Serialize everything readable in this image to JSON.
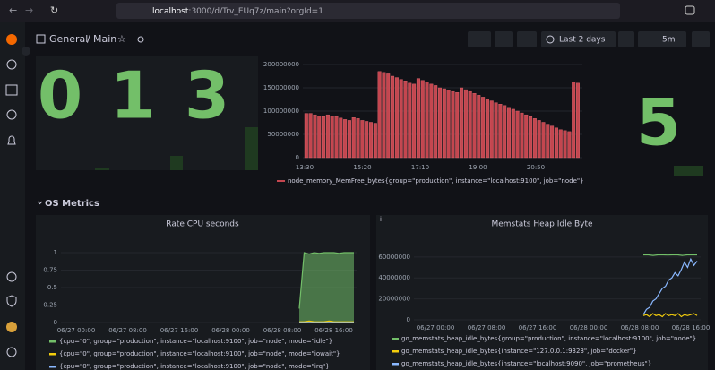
{
  "browser": {
    "url_host": "localhost",
    "url_rest": ":3000/d/Trv_EUq7z/main?orgId=1"
  },
  "header": {
    "folder": "General",
    "separator": "/",
    "title": "Main",
    "time_range": "Last 2 days",
    "refresh": "5m"
  },
  "stats": [
    0,
    1,
    3,
    5
  ],
  "memfree": {
    "ylim": [
      0,
      200000000
    ],
    "yticks": [
      0,
      50000000,
      100000000,
      150000000,
      200000000
    ],
    "xticks": [
      "13:30",
      "15:20",
      "17:10",
      "19:00",
      "20:50"
    ],
    "color": "#c4464f",
    "legend": "node_memory_MemFree_bytes{group=\"production\", instance=\"localhost:9100\", job=\"node\"}",
    "values": [
      95000000,
      95000000,
      92000000,
      90000000,
      88000000,
      92000000,
      90000000,
      88000000,
      85000000,
      82000000,
      80000000,
      86000000,
      84000000,
      80000000,
      78000000,
      76000000,
      74000000,
      185000000,
      183000000,
      180000000,
      175000000,
      172000000,
      168000000,
      165000000,
      160000000,
      158000000,
      170000000,
      166000000,
      162000000,
      158000000,
      155000000,
      150000000,
      148000000,
      145000000,
      142000000,
      140000000,
      150000000,
      146000000,
      142000000,
      138000000,
      134000000,
      130000000,
      126000000,
      122000000,
      118000000,
      115000000,
      112000000,
      108000000,
      104000000,
      100000000,
      96000000,
      92000000,
      88000000,
      84000000,
      80000000,
      76000000,
      72000000,
      68000000,
      64000000,
      60000000,
      58000000,
      56000000,
      162000000,
      160000000
    ]
  },
  "row_title": "OS Metrics",
  "cpu": {
    "title": "Rate CPU seconds",
    "ylim": [
      0,
      1
    ],
    "yticks": [
      0,
      0.25,
      0.5,
      0.75,
      1
    ],
    "xticks": [
      "06/27 00:00",
      "06/27 08:00",
      "06/27 16:00",
      "06/28 00:00",
      "06/28 08:00",
      "06/28 16:00"
    ],
    "series": [
      {
        "name": "{cpu=\"0\", group=\"production\", instance=\"localhost:9100\", job=\"node\", mode=\"idle\"}",
        "color": "#73bf69",
        "values": [
          0.2,
          1,
          0.98,
          1,
          0.99,
          1,
          1,
          1,
          0.99,
          1,
          1,
          1
        ]
      },
      {
        "name": "{cpu=\"0\", group=\"production\", instance=\"localhost:9100\", job=\"node\", mode=\"iowait\"}",
        "color": "#f2cc0c",
        "values": [
          0.01,
          0.01,
          0.02,
          0.01,
          0.01,
          0.01,
          0.02,
          0.01,
          0.01,
          0.01,
          0.01,
          0.01
        ]
      },
      {
        "name": "{cpu=\"0\", group=\"production\", instance=\"localhost:9100\", job=\"node\", mode=\"irq\"}",
        "color": "#8ab8ff",
        "values": [
          0,
          0,
          0,
          0,
          0,
          0,
          0,
          0,
          0,
          0,
          0,
          0
        ]
      }
    ]
  },
  "heap": {
    "title": "Memstats Heap Idle Byte",
    "ylim": [
      0,
      65000000
    ],
    "yticks": [
      0,
      20000000,
      40000000,
      60000000
    ],
    "xticks": [
      "06/27 00:00",
      "06/27 08:00",
      "06/27 16:00",
      "06/28 00:00",
      "06/28 08:00",
      "06/28 16:00"
    ],
    "series": [
      {
        "name": "go_memstats_heap_idle_bytes{group=\"production\", instance=\"localhost:9100\", job=\"node\"}",
        "color": "#73bf69",
        "values": [
          62000000,
          62000000,
          61500000,
          62000000,
          62000000,
          61800000,
          62000000,
          62000000,
          61500000,
          62000000,
          62000000,
          62000000
        ]
      },
      {
        "name": "go_memstats_heap_idle_bytes{instance=\"127.0.0.1:9323\", job=\"docker\"}",
        "color": "#f2cc0c",
        "values": [
          4000000,
          5000000,
          3000000,
          6000000,
          4000000,
          5000000,
          3000000,
          6000000,
          4000000,
          5000000,
          4000000,
          6000000,
          3000000,
          5000000,
          4000000,
          5000000,
          6000000,
          4000000
        ]
      },
      {
        "name": "go_memstats_heap_idle_bytes{instance=\"localhost:9090\", job=\"prometheus\"}",
        "color": "#8ab8ff",
        "values": [
          5000000,
          10000000,
          12000000,
          18000000,
          20000000,
          25000000,
          30000000,
          32000000,
          38000000,
          40000000,
          45000000,
          42000000,
          48000000,
          55000000,
          50000000,
          58000000,
          52000000,
          56000000
        ]
      }
    ]
  }
}
